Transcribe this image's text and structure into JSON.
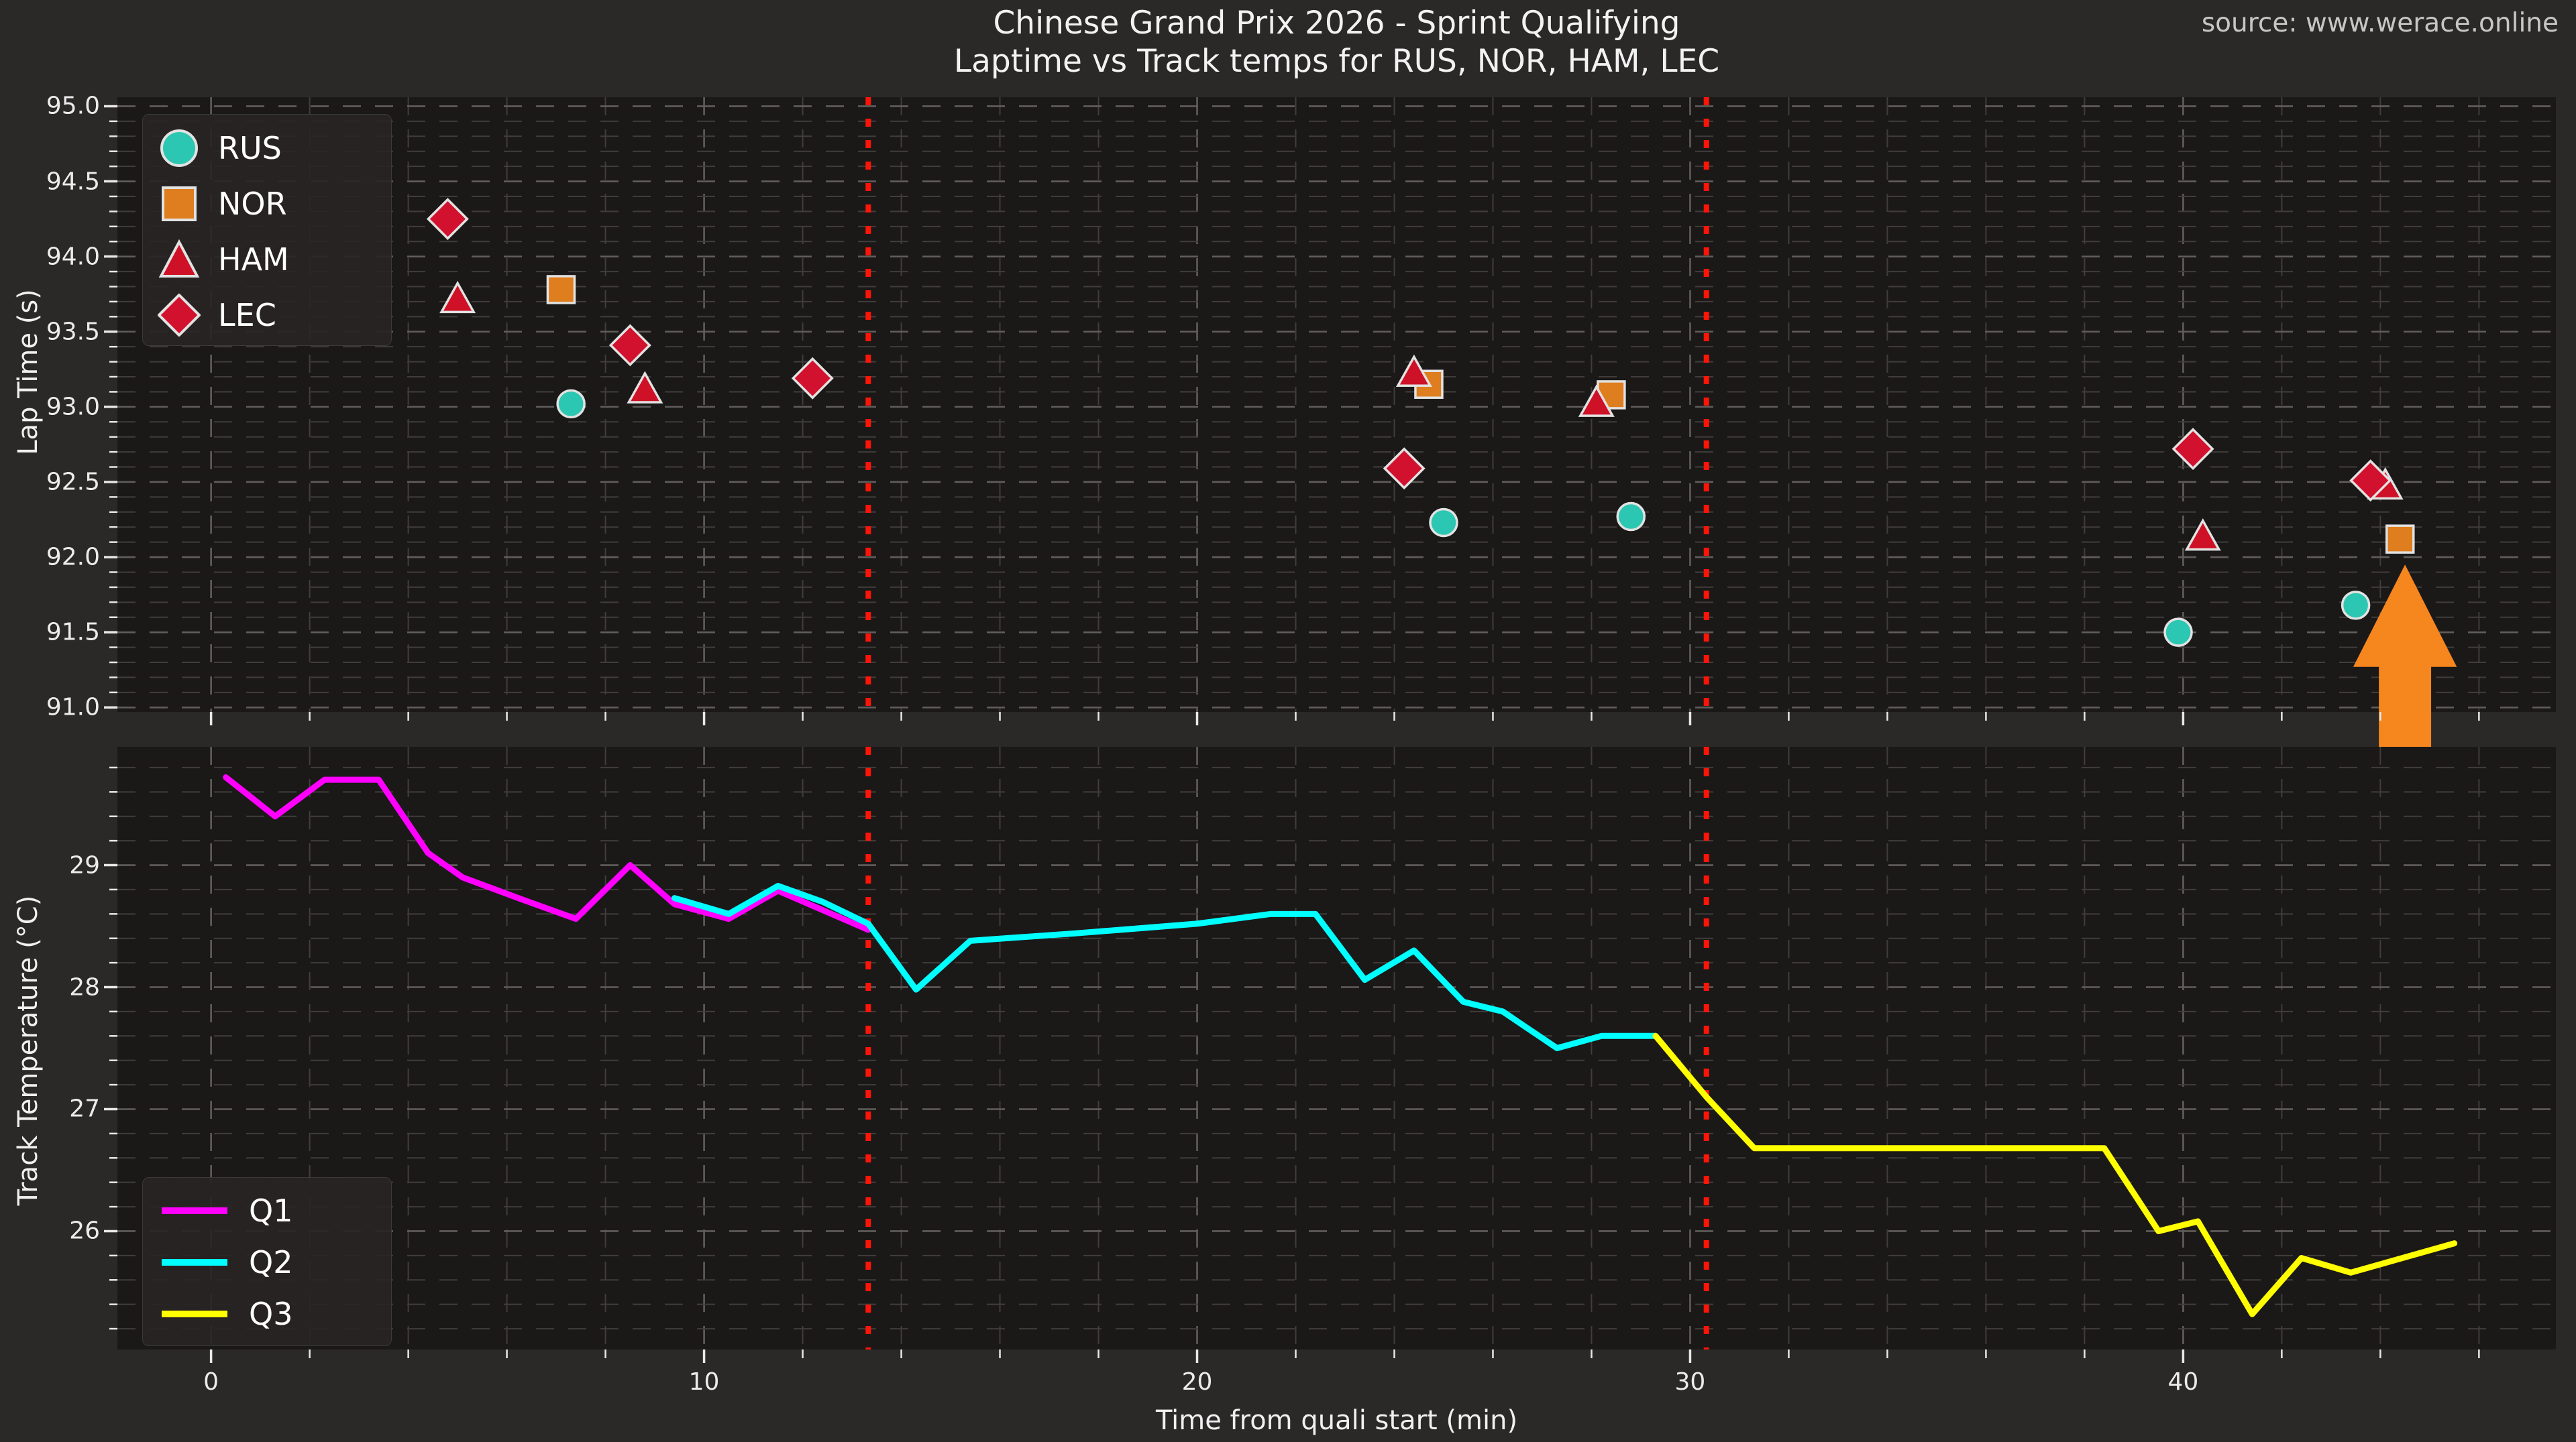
{
  "header": {
    "title": "Chinese Grand Prix 2026 - Sprint Qualifying",
    "subtitle": "Laptime vs Track temps for RUS, NOR, HAM, LEC",
    "source": "source: www.werace.online"
  },
  "colors": {
    "figure_bg": "#2b2828",
    "panel_bg": "#1b1818",
    "grid_minor": "#403d3c",
    "grid_major": "#615d5b",
    "tick": "#e8e8e8",
    "text": "#f2f2f2",
    "muted_text": "#c6c6c6",
    "session_break_line": "#ff1508",
    "arrow": "#f6871e",
    "marker_edge": "#e2e2e2"
  },
  "chart_data": [
    {
      "type": "scatter",
      "panel": "top",
      "title": "Chinese Grand Prix 2026 - Sprint Qualifying",
      "subtitle": "Laptime vs Track temps for RUS, NOR, HAM, LEC",
      "xlabel": "",
      "ylabel": "Lap Time (s)",
      "xlim": [
        -1.9,
        47.56
      ],
      "ylim": [
        90.97,
        95.06
      ],
      "grid": true,
      "legend_position": "upper left",
      "minor_y_step": 0.1,
      "minor_x_step": 2,
      "yticks": [
        {
          "v": 95.0,
          "label": "95.0"
        },
        {
          "v": 94.5,
          "label": "94.5"
        },
        {
          "v": 94.0,
          "label": "94.0"
        },
        {
          "v": 93.5,
          "label": "93.5"
        },
        {
          "v": 93.0,
          "label": "93.0"
        },
        {
          "v": 92.5,
          "label": "92.5"
        },
        {
          "v": 92.0,
          "label": "92.0"
        },
        {
          "v": 91.5,
          "label": "91.5"
        },
        {
          "v": 91.0,
          "label": "91.0"
        }
      ],
      "series": [
        {
          "name": "RUS",
          "marker": "circle",
          "color": "#2cc7b2",
          "points": [
            [
              7.3,
              93.02
            ],
            [
              25.0,
              92.23
            ],
            [
              28.8,
              92.27
            ],
            [
              39.9,
              91.5
            ],
            [
              43.5,
              91.68
            ]
          ]
        },
        {
          "name": "NOR",
          "marker": "square",
          "color": "#df7e1e",
          "points": [
            [
              7.1,
              93.78
            ],
            [
              24.7,
              93.15
            ],
            [
              28.4,
              93.08
            ],
            [
              44.4,
              92.12
            ]
          ]
        },
        {
          "name": "HAM",
          "marker": "triangle",
          "color": "#ce1126",
          "points": [
            [
              5.0,
              93.72
            ],
            [
              8.8,
              93.12
            ],
            [
              24.4,
              93.23
            ],
            [
              28.1,
              93.03
            ],
            [
              40.4,
              92.14
            ],
            [
              44.1,
              92.48
            ]
          ]
        },
        {
          "name": "LEC",
          "marker": "diamond",
          "color": "#d2112e",
          "points": [
            [
              4.8,
              94.25
            ],
            [
              8.5,
              93.41
            ],
            [
              12.2,
              93.19
            ],
            [
              24.2,
              92.59
            ],
            [
              40.2,
              92.72
            ],
            [
              43.8,
              92.51
            ]
          ]
        }
      ],
      "annotations": {
        "session_break_lines_x": [
          13.33,
          30.33
        ],
        "arrow": {
          "x": 44.5,
          "tip_y": 91.95,
          "head_base_y": 91.27,
          "tail_y": 90.62,
          "head_half_width_min": 1.05,
          "shaft_half_width_min": 0.53
        }
      }
    },
    {
      "type": "line",
      "panel": "bottom",
      "xlabel": "Time from quali start (min)",
      "ylabel": "Track Temperature (°C)",
      "xlim": [
        -1.9,
        47.56
      ],
      "ylim": [
        25.03,
        29.97
      ],
      "grid": true,
      "legend_position": "lower left",
      "minor_y_step": 0.2,
      "minor_x_step": 2,
      "yticks": [
        {
          "v": 29,
          "label": "29"
        },
        {
          "v": 28,
          "label": "28"
        },
        {
          "v": 27,
          "label": "27"
        },
        {
          "v": 26,
          "label": "26"
        }
      ],
      "xticks": [
        {
          "v": 0,
          "label": "0"
        },
        {
          "v": 10,
          "label": "10"
        },
        {
          "v": 20,
          "label": "20"
        },
        {
          "v": 30,
          "label": "30"
        },
        {
          "v": 40,
          "label": "40"
        }
      ],
      "series": [
        {
          "name": "Q1",
          "color": "#ff00ff",
          "points": [
            [
              0.3,
              29.72
            ],
            [
              1.3,
              29.4
            ],
            [
              2.3,
              29.7
            ],
            [
              3.4,
              29.7
            ],
            [
              4.4,
              29.1
            ],
            [
              5.1,
              28.9
            ],
            [
              6.3,
              28.72
            ],
            [
              7.4,
              28.56
            ],
            [
              8.5,
              29.0
            ],
            [
              9.4,
              28.68
            ],
            [
              10.5,
              28.56
            ],
            [
              11.5,
              28.79
            ],
            [
              13.33,
              28.47
            ]
          ]
        },
        {
          "name": "Q2",
          "color": "#00ffff",
          "points": [
            [
              9.4,
              28.73
            ],
            [
              10.5,
              28.6
            ],
            [
              11.5,
              28.83
            ],
            [
              12.4,
              28.7
            ],
            [
              13.33,
              28.52
            ],
            [
              14.3,
              27.98
            ],
            [
              15.4,
              28.38
            ],
            [
              17.5,
              28.44
            ],
            [
              20.0,
              28.52
            ],
            [
              21.5,
              28.6
            ],
            [
              22.4,
              28.6
            ],
            [
              23.4,
              28.06
            ],
            [
              24.4,
              28.3
            ],
            [
              25.4,
              27.88
            ],
            [
              26.2,
              27.8
            ],
            [
              27.3,
              27.5
            ],
            [
              28.2,
              27.6
            ],
            [
              29.3,
              27.6
            ]
          ]
        },
        {
          "name": "Q3",
          "color": "#ffff00",
          "points": [
            [
              29.3,
              27.6
            ],
            [
              30.33,
              27.1
            ],
            [
              31.3,
              26.68
            ],
            [
              38.4,
              26.68
            ],
            [
              39.5,
              26.0
            ],
            [
              40.3,
              26.08
            ],
            [
              41.4,
              25.32
            ],
            [
              42.4,
              25.78
            ],
            [
              43.4,
              25.66
            ],
            [
              45.5,
              25.9
            ]
          ]
        }
      ],
      "annotations": {
        "session_break_lines_x": [
          13.33,
          30.33
        ]
      }
    }
  ]
}
